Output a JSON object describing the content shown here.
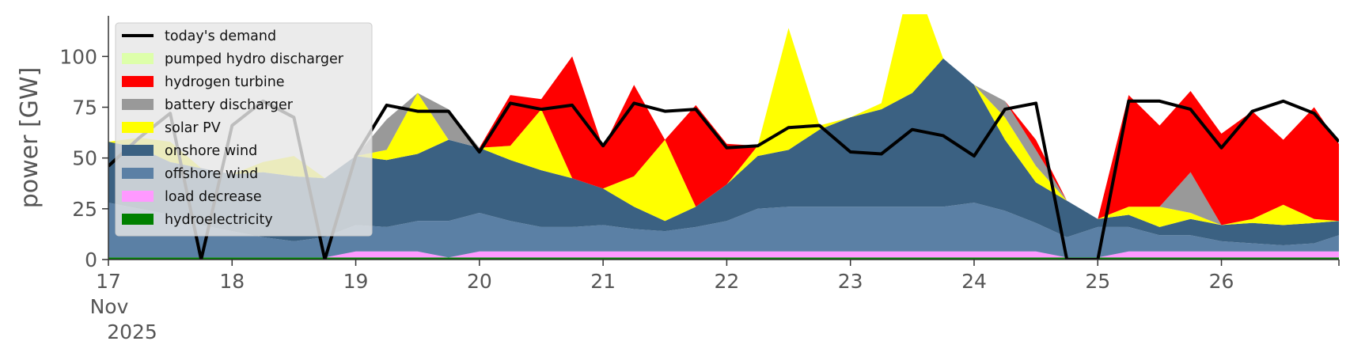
{
  "chart_data": {
    "type": "area",
    "ylabel": "power [GW]",
    "ylim": [
      0,
      120
    ],
    "y_ticks": [
      0,
      25,
      50,
      75,
      100
    ],
    "xlim": [
      17,
      26.95
    ],
    "x_ticks": [
      {
        "x": 17,
        "label": "17",
        "sub": [
          "Nov",
          "2025"
        ]
      },
      {
        "x": 18,
        "label": "18"
      },
      {
        "x": 19,
        "label": "19"
      },
      {
        "x": 20,
        "label": "20"
      },
      {
        "x": 21,
        "label": "21"
      },
      {
        "x": 22,
        "label": "22"
      },
      {
        "x": 23,
        "label": "23"
      },
      {
        "x": 24,
        "label": "24"
      },
      {
        "x": 25,
        "label": "25"
      },
      {
        "x": 26,
        "label": "26"
      }
    ],
    "grid": false,
    "legend_position": "upper-left",
    "x": [
      17.0,
      17.25,
      17.5,
      17.75,
      18.0,
      18.25,
      18.5,
      18.75,
      19.0,
      19.25,
      19.5,
      19.75,
      20.0,
      20.25,
      20.5,
      20.75,
      21.0,
      21.25,
      21.5,
      21.75,
      22.0,
      22.25,
      22.5,
      22.75,
      23.0,
      23.25,
      23.5,
      23.75,
      24.0,
      24.25,
      24.5,
      24.75,
      25.0,
      25.25,
      25.5,
      25.75,
      26.0,
      26.25,
      26.5,
      26.75,
      26.95
    ],
    "series": [
      {
        "name": "hydroelectricity",
        "color": "#008000",
        "values": [
          1,
          1,
          1,
          1,
          1,
          1,
          1,
          1,
          1,
          1,
          1,
          1,
          1,
          1,
          1,
          1,
          1,
          1,
          1,
          1,
          1,
          1,
          1,
          1,
          1,
          1,
          1,
          1,
          1,
          1,
          1,
          1,
          1,
          1,
          1,
          1,
          1,
          1,
          1,
          1,
          1
        ]
      },
      {
        "name": "load decrease",
        "color": "#ff99ff",
        "values": [
          0,
          0,
          0,
          0,
          0,
          0,
          0,
          0,
          3,
          3,
          3,
          0,
          3,
          3,
          3,
          3,
          3,
          3,
          3,
          3,
          3,
          3,
          3,
          3,
          3,
          3,
          3,
          3,
          3,
          3,
          3,
          0,
          0,
          3,
          3,
          3,
          3,
          3,
          3,
          3,
          3
        ]
      },
      {
        "name": "offshore wind",
        "color": "#5b80a5",
        "values": [
          27,
          24,
          21,
          16,
          13,
          10,
          8,
          10,
          13,
          12,
          15,
          18,
          19,
          15,
          12,
          12,
          13,
          11,
          10,
          12,
          15,
          21,
          22,
          22,
          22,
          22,
          22,
          22,
          24,
          20,
          14,
          10,
          15,
          12,
          8,
          8,
          5,
          4,
          3,
          4,
          8
        ]
      },
      {
        "name": "onshore wind",
        "color": "#3b6182",
        "values": [
          30,
          30,
          26,
          28,
          28,
          32,
          32,
          29,
          34,
          33,
          33,
          40,
          32,
          30,
          28,
          24,
          18,
          11,
          5,
          10,
          18,
          26,
          28,
          38,
          44,
          48,
          56,
          73,
          58,
          35,
          20,
          18,
          4,
          6,
          4,
          8,
          8,
          10,
          10,
          10,
          7
        ]
      },
      {
        "name": "solar PV",
        "color": "#ffff00",
        "values": [
          0,
          5,
          10,
          0,
          0,
          5,
          10,
          0,
          0,
          5,
          30,
          0,
          0,
          7,
          30,
          0,
          0,
          15,
          40,
          0,
          0,
          5,
          60,
          2,
          0,
          3,
          59,
          0,
          0,
          11,
          8,
          0,
          0,
          4,
          10,
          3,
          0,
          2,
          10,
          2,
          0
        ]
      },
      {
        "name": "battery discharger",
        "color": "#999999",
        "values": [
          0,
          0,
          0,
          0,
          0,
          0,
          0,
          0,
          0,
          15,
          0,
          15,
          0,
          0,
          0,
          0,
          0,
          0,
          0,
          0,
          0,
          0,
          0,
          0,
          0,
          0,
          0,
          0,
          0,
          8,
          8,
          0,
          0,
          0,
          0,
          20,
          0,
          0,
          0,
          0,
          0
        ]
      },
      {
        "name": "hydrogen turbine",
        "color": "#ff0000",
        "values": [
          0,
          0,
          0,
          0,
          0,
          0,
          0,
          0,
          0,
          0,
          0,
          0,
          0,
          25,
          5,
          60,
          20,
          45,
          0,
          50,
          20,
          0,
          0,
          0,
          0,
          0,
          0,
          0,
          0,
          0,
          5,
          0,
          0,
          55,
          40,
          40,
          45,
          53,
          32,
          55,
          38
        ]
      },
      {
        "name": "pumped hydro discharger",
        "color": "#ddffaa",
        "values": [
          0,
          0,
          0,
          0,
          0,
          0,
          0,
          0,
          0,
          0,
          0,
          0,
          0,
          0,
          0,
          0,
          0,
          0,
          0,
          0,
          0,
          0,
          0,
          0,
          0,
          0,
          0,
          0,
          0,
          0,
          0,
          0,
          0,
          0,
          0,
          0,
          0,
          0,
          0,
          0,
          0
        ]
      }
    ],
    "demand": {
      "name": "today's demand",
      "color": "#000000",
      "values": [
        46,
        60,
        72,
        0,
        66,
        78,
        70,
        0,
        51,
        76,
        73,
        73,
        53,
        77,
        74,
        76,
        56,
        77,
        73,
        74,
        55,
        56,
        65,
        66,
        53,
        52,
        64,
        61,
        51,
        74,
        77,
        0,
        0,
        78,
        78,
        74,
        55,
        73,
        78,
        72,
        58
      ]
    },
    "legend": [
      "today's demand",
      "pumped hydro discharger",
      "hydrogen turbine",
      "battery discharger",
      "solar PV",
      "onshore wind",
      "offshore wind",
      "load decrease",
      "hydroelectricity"
    ]
  }
}
